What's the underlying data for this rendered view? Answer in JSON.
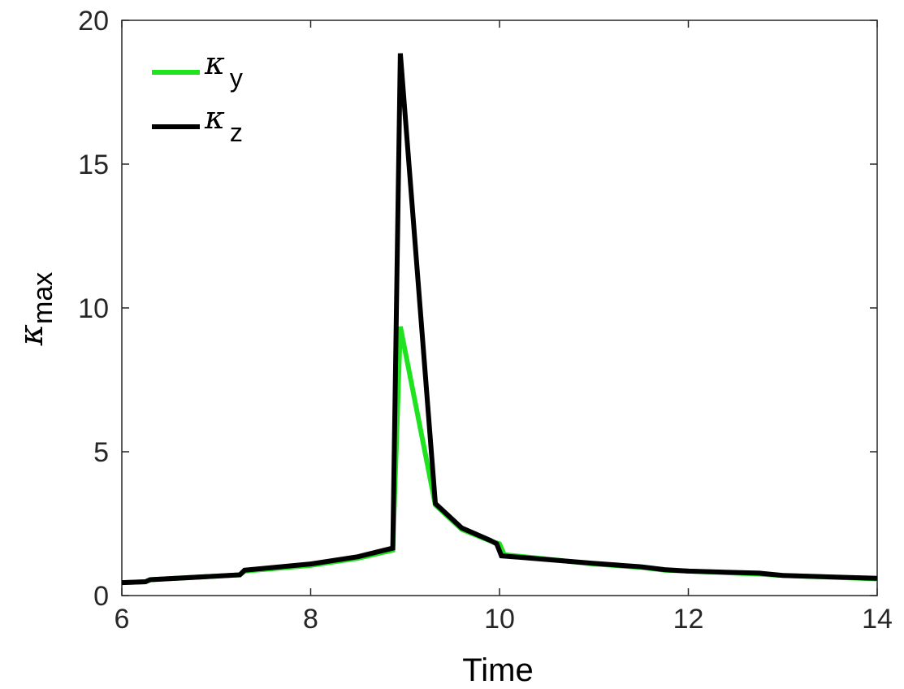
{
  "chart_data": {
    "type": "line",
    "xlabel": "Time",
    "ylabel": {
      "base": "κ",
      "sub": "max"
    },
    "xlim": [
      6,
      14
    ],
    "ylim": [
      0,
      20
    ],
    "xticks": [
      6,
      8,
      10,
      12,
      14
    ],
    "yticks": [
      0,
      5,
      10,
      15,
      20
    ],
    "grid": false,
    "legend": "top-left",
    "series": [
      {
        "name": "κy",
        "name_base": "κ",
        "name_sub": "y",
        "color": "#1ee31e",
        "x": [
          6.0,
          6.25,
          6.3,
          7.25,
          7.3,
          8.0,
          8.5,
          8.87,
          8.95,
          9.32,
          9.6,
          9.9,
          10.0,
          10.05,
          11.0,
          11.5,
          11.75,
          12.0,
          12.75,
          13.0,
          14.0
        ],
        "y": [
          0.45,
          0.48,
          0.55,
          0.72,
          0.85,
          1.05,
          1.3,
          1.58,
          9.35,
          3.15,
          2.3,
          1.9,
          1.8,
          1.42,
          1.1,
          0.98,
          0.88,
          0.85,
          0.75,
          0.7,
          0.58
        ]
      },
      {
        "name": "κz",
        "name_base": "κ",
        "name_sub": "z",
        "color": "#000000",
        "x": [
          6.0,
          6.25,
          6.3,
          7.25,
          7.3,
          8.0,
          8.5,
          8.87,
          8.95,
          9.32,
          9.6,
          9.9,
          9.97,
          10.02,
          11.0,
          11.5,
          11.75,
          12.0,
          12.75,
          13.0,
          14.0
        ],
        "y": [
          0.45,
          0.48,
          0.55,
          0.72,
          0.88,
          1.1,
          1.35,
          1.65,
          18.85,
          3.2,
          2.35,
          1.92,
          1.8,
          1.38,
          1.12,
          1.0,
          0.9,
          0.85,
          0.78,
          0.7,
          0.6
        ]
      }
    ]
  }
}
